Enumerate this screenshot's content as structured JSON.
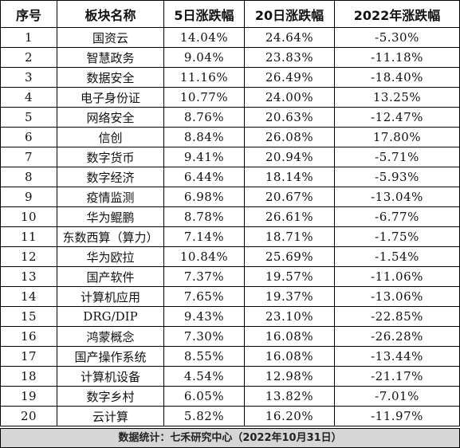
{
  "headers": {
    "rank": "序号",
    "sector": "板块名称",
    "d5": "5日涨跌幅",
    "d20": "20日涨跌幅",
    "y2022": "2022年涨跌幅"
  },
  "rows": [
    {
      "rank": "1",
      "sector": "国资云",
      "d5": "14.04%",
      "d20": "24.64%",
      "y2022": "-5.30%"
    },
    {
      "rank": "2",
      "sector": "智慧政务",
      "d5": "9.04%",
      "d20": "23.83%",
      "y2022": "-11.18%"
    },
    {
      "rank": "3",
      "sector": "数据安全",
      "d5": "11.16%",
      "d20": "26.49%",
      "y2022": "-18.40%"
    },
    {
      "rank": "4",
      "sector": "电子身份证",
      "d5": "10.77%",
      "d20": "24.00%",
      "y2022": "13.25%"
    },
    {
      "rank": "5",
      "sector": "网络安全",
      "d5": "8.76%",
      "d20": "20.63%",
      "y2022": "-12.47%"
    },
    {
      "rank": "6",
      "sector": "信创",
      "d5": "8.84%",
      "d20": "26.08%",
      "y2022": "17.80%"
    },
    {
      "rank": "7",
      "sector": "数字货币",
      "d5": "9.41%",
      "d20": "20.94%",
      "y2022": "-5.71%"
    },
    {
      "rank": "8",
      "sector": "数字经济",
      "d5": "6.44%",
      "d20": "18.14%",
      "y2022": "-5.93%"
    },
    {
      "rank": "9",
      "sector": "疫情监测",
      "d5": "6.98%",
      "d20": "20.67%",
      "y2022": "-13.04%"
    },
    {
      "rank": "10",
      "sector": "华为鲲鹏",
      "d5": "8.78%",
      "d20": "26.61%",
      "y2022": "-6.77%"
    },
    {
      "rank": "11",
      "sector": "东数西算（算力）",
      "d5": "7.14%",
      "d20": "18.71%",
      "y2022": "-1.75%"
    },
    {
      "rank": "12",
      "sector": "华为欧拉",
      "d5": "10.84%",
      "d20": "25.69%",
      "y2022": "-1.54%"
    },
    {
      "rank": "13",
      "sector": "国产软件",
      "d5": "7.37%",
      "d20": "19.57%",
      "y2022": "-11.06%"
    },
    {
      "rank": "14",
      "sector": "计算机应用",
      "d5": "7.65%",
      "d20": "19.37%",
      "y2022": "-13.06%"
    },
    {
      "rank": "15",
      "sector": "DRG/DIP",
      "d5": "9.43%",
      "d20": "23.10%",
      "y2022": "-22.85%"
    },
    {
      "rank": "16",
      "sector": "鸿蒙概念",
      "d5": "7.30%",
      "d20": "16.08%",
      "y2022": "-26.28%"
    },
    {
      "rank": "17",
      "sector": "国产操作系统",
      "d5": "8.55%",
      "d20": "16.08%",
      "y2022": "-13.44%"
    },
    {
      "rank": "18",
      "sector": "计算机设备",
      "d5": "4.54%",
      "d20": "12.98%",
      "y2022": "-21.17%"
    },
    {
      "rank": "19",
      "sector": "数字乡村",
      "d5": "6.05%",
      "d20": "13.82%",
      "y2022": "-7.01%"
    },
    {
      "rank": "20",
      "sector": "云计算",
      "d5": "5.82%",
      "d20": "16.20%",
      "y2022": "-11.97%"
    }
  ],
  "footer": "数据统计：七禾研究中心（2022年10月31日）"
}
